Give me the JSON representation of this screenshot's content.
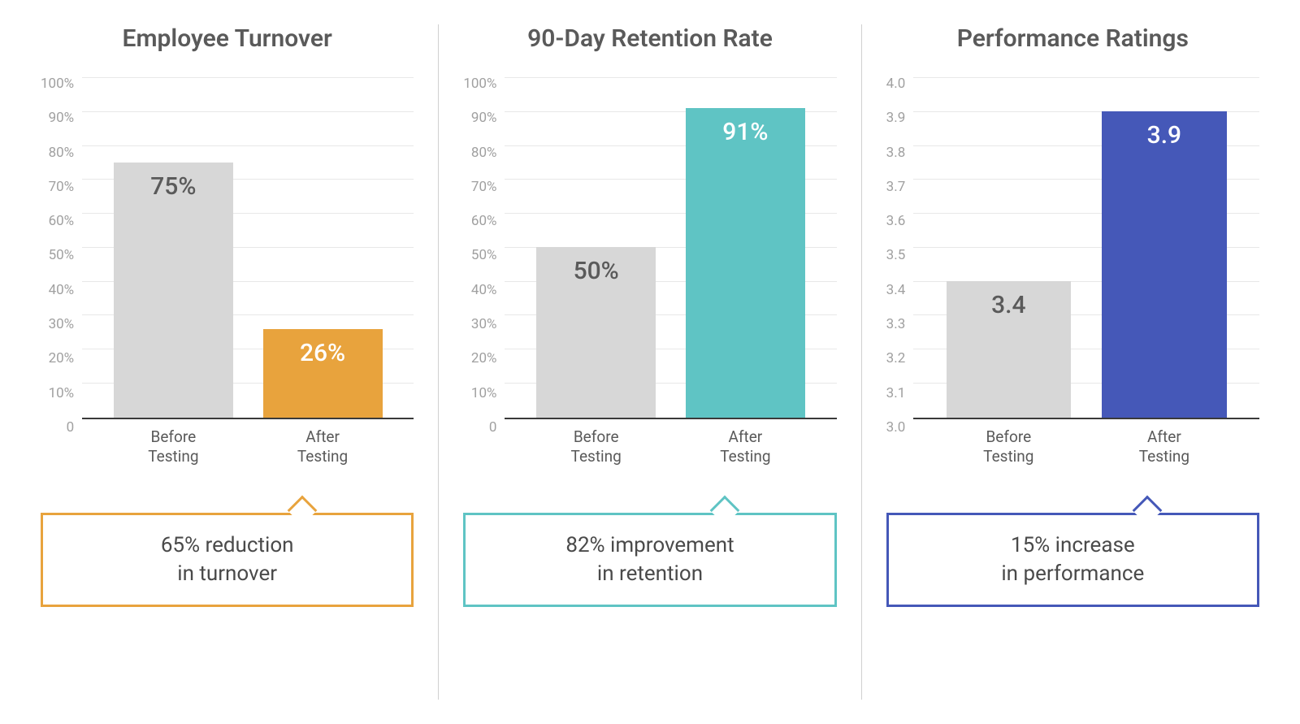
{
  "layout": {
    "background_color": "#ffffff",
    "grid_color": "#e8e8e8",
    "axis_color": "#3a3a3a",
    "tick_color": "#a0a0a0",
    "title_color": "#5a5a5a",
    "title_fontsize": 30,
    "tick_fontsize": 17,
    "xlabel_fontsize": 19,
    "barlabel_fontsize": 30,
    "callout_fontsize": 26
  },
  "charts": [
    {
      "title": "Employee Turnover",
      "type": "bar",
      "y_min": 0,
      "y_max": 100,
      "y_ticks": [
        "100%",
        "90%",
        "80%",
        "70%",
        "60%",
        "50%",
        "40%",
        "30%",
        "20%",
        "10%",
        "0"
      ],
      "bars": [
        {
          "category_line1": "Before",
          "category_line2": "Testing",
          "value": 75,
          "label": "75%",
          "color": "#d7d7d7",
          "label_color": "#5a5a5a"
        },
        {
          "category_line1": "After",
          "category_line2": "Testing",
          "value": 26,
          "label": "26%",
          "color": "#e8a33d",
          "label_color": "#ffffff"
        }
      ],
      "callout": {
        "text_line1": "65% reduction",
        "text_line2": "in turnover",
        "border_color": "#e8a33d"
      }
    },
    {
      "title": "90-Day Retention Rate",
      "type": "bar",
      "y_min": 0,
      "y_max": 100,
      "y_ticks": [
        "100%",
        "90%",
        "80%",
        "70%",
        "60%",
        "50%",
        "40%",
        "30%",
        "20%",
        "10%",
        "0"
      ],
      "bars": [
        {
          "category_line1": "Before",
          "category_line2": "Testing",
          "value": 50,
          "label": "50%",
          "color": "#d7d7d7",
          "label_color": "#5a5a5a"
        },
        {
          "category_line1": "After",
          "category_line2": "Testing",
          "value": 91,
          "label": "91%",
          "color": "#5fc4c4",
          "label_color": "#ffffff"
        }
      ],
      "callout": {
        "text_line1": "82% improvement",
        "text_line2": "in retention",
        "border_color": "#5fc4c4"
      }
    },
    {
      "title": "Performance Ratings",
      "type": "bar",
      "y_min": 3.0,
      "y_max": 4.0,
      "y_ticks": [
        "4.0",
        "3.9",
        "3.8",
        "3.7",
        "3.6",
        "3.5",
        "3.4",
        "3.3",
        "3.2",
        "3.1",
        "3.0"
      ],
      "bars": [
        {
          "category_line1": "Before",
          "category_line2": "Testing",
          "value": 3.4,
          "label": "3.4",
          "color": "#d7d7d7",
          "label_color": "#5a5a5a"
        },
        {
          "category_line1": "After",
          "category_line2": "Testing",
          "value": 3.9,
          "label": "3.9",
          "color": "#4558b8",
          "label_color": "#ffffff"
        }
      ],
      "callout": {
        "text_line1": "15% increase",
        "text_line2": "in performance",
        "border_color": "#4558b8"
      }
    }
  ]
}
